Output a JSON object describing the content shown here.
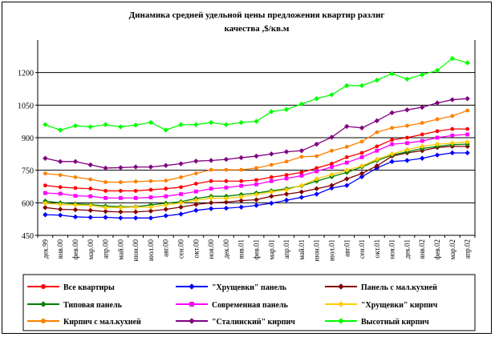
{
  "chart_data": {
    "type": "line",
    "title_line1": "Динамика средней удельной цены  предложения квартир разлиг",
    "title_line2": "качества ,$/кв.м",
    "ylim": [
      450,
      1350
    ],
    "yticks": [
      450,
      600,
      750,
      900,
      1050,
      1200
    ],
    "grid": "horizontal",
    "legend_position": "bottom",
    "categories": [
      "дек.99",
      "янв.00",
      "фев.00",
      "мар.00",
      "апр.00",
      "май.00",
      "июн.00",
      "июл.00",
      "авг.00",
      "сен.00",
      "окт.00",
      "ноя.00",
      "дек.00",
      "янв.01",
      "фев.01",
      "мар.01",
      "апр.01",
      "май.01",
      "июн.01",
      "июл.01",
      "авг.01",
      "сен.01",
      "окт.01",
      "ноя.01",
      "дек.01",
      "янв.02",
      "фев.02",
      "мар.02",
      "апр.02"
    ],
    "xtick_labels": [
      "дек.99",
      "янв.00",
      "фев.00",
      "мар.00",
      "апр.00",
      "май.00",
      "июн.00",
      "июл.00",
      "авг.00",
      "сен.00",
      "окт.00",
      "ноя.00",
      "дек.00",
      "янв.01",
      "фев.01",
      "мар.01",
      "апр.01",
      "май.01",
      "июн.01",
      "июл.01",
      "авг.01",
      "сен.01",
      "окт.01",
      "ноя.01",
      "дек.01",
      "янв.02",
      "фев.02",
      "мар.02",
      "апр.02"
    ],
    "series": [
      {
        "name": "Все квартиры",
        "color": "#ff0000",
        "marker": "circle",
        "values": [
          680,
          672,
          668,
          665,
          655,
          655,
          655,
          660,
          665,
          672,
          688,
          700,
          700,
          700,
          705,
          718,
          728,
          740,
          760,
          780,
          810,
          830,
          860,
          890,
          900,
          915,
          930,
          940,
          940
        ]
      },
      {
        "name": "\"Хрущевки\" панель",
        "color": "#0000ff",
        "marker": "diamond",
        "values": [
          545,
          543,
          535,
          533,
          533,
          530,
          530,
          530,
          540,
          548,
          565,
          573,
          575,
          580,
          588,
          598,
          612,
          625,
          640,
          668,
          680,
          720,
          760,
          790,
          795,
          805,
          820,
          830,
          830
        ]
      },
      {
        "name": "Панель с мал.кухней",
        "color": "#800000",
        "marker": "diamond",
        "values": [
          578,
          570,
          568,
          565,
          560,
          558,
          558,
          562,
          570,
          580,
          592,
          600,
          603,
          610,
          614,
          630,
          640,
          650,
          665,
          680,
          710,
          735,
          770,
          815,
          830,
          840,
          855,
          860,
          860
        ]
      },
      {
        "name": "Типовая панель",
        "color": "#008000",
        "marker": "diamond",
        "values": [
          608,
          600,
          595,
          592,
          585,
          582,
          582,
          590,
          598,
          605,
          620,
          630,
          630,
          638,
          645,
          655,
          665,
          678,
          700,
          720,
          740,
          765,
          795,
          820,
          835,
          850,
          860,
          868,
          870
        ]
      },
      {
        "name": "Современная панель",
        "color": "#ff00ff",
        "marker": "square",
        "values": [
          645,
          642,
          632,
          630,
          622,
          622,
          622,
          625,
          630,
          640,
          652,
          665,
          670,
          678,
          685,
          700,
          712,
          725,
          745,
          765,
          785,
          810,
          840,
          870,
          875,
          885,
          900,
          910,
          915
        ]
      },
      {
        "name": "\"Хрущевки\" кирпич",
        "color": "#ffcc00",
        "marker": "diamond",
        "values": [
          598,
          592,
          590,
          588,
          578,
          578,
          580,
          580,
          590,
          600,
          612,
          622,
          620,
          628,
          638,
          650,
          660,
          680,
          710,
          730,
          750,
          770,
          800,
          825,
          845,
          860,
          870,
          875,
          880
        ]
      },
      {
        "name": "Кирпич с мал.кухней",
        "color": "#ff8000",
        "marker": "circle",
        "values": [
          735,
          728,
          718,
          708,
          695,
          695,
          698,
          700,
          702,
          718,
          735,
          752,
          752,
          752,
          760,
          775,
          790,
          812,
          815,
          840,
          858,
          882,
          925,
          945,
          955,
          968,
          985,
          1000,
          1025
        ]
      },
      {
        "name": "\"Сталинский\" кирпич",
        "color": "#800080",
        "marker": "diamond",
        "values": [
          805,
          790,
          790,
          775,
          760,
          762,
          765,
          765,
          772,
          780,
          792,
          795,
          800,
          808,
          815,
          825,
          835,
          840,
          870,
          902,
          952,
          945,
          978,
          1015,
          1028,
          1040,
          1060,
          1075,
          1080
        ]
      },
      {
        "name": "Высотный кирпич",
        "color": "#00ff00",
        "marker": "diamond",
        "values": [
          960,
          935,
          955,
          950,
          960,
          950,
          958,
          970,
          935,
          960,
          960,
          970,
          960,
          970,
          975,
          1020,
          1030,
          1055,
          1080,
          1098,
          1140,
          1140,
          1165,
          1195,
          1170,
          1190,
          1210,
          1265,
          1245
        ]
      }
    ]
  }
}
